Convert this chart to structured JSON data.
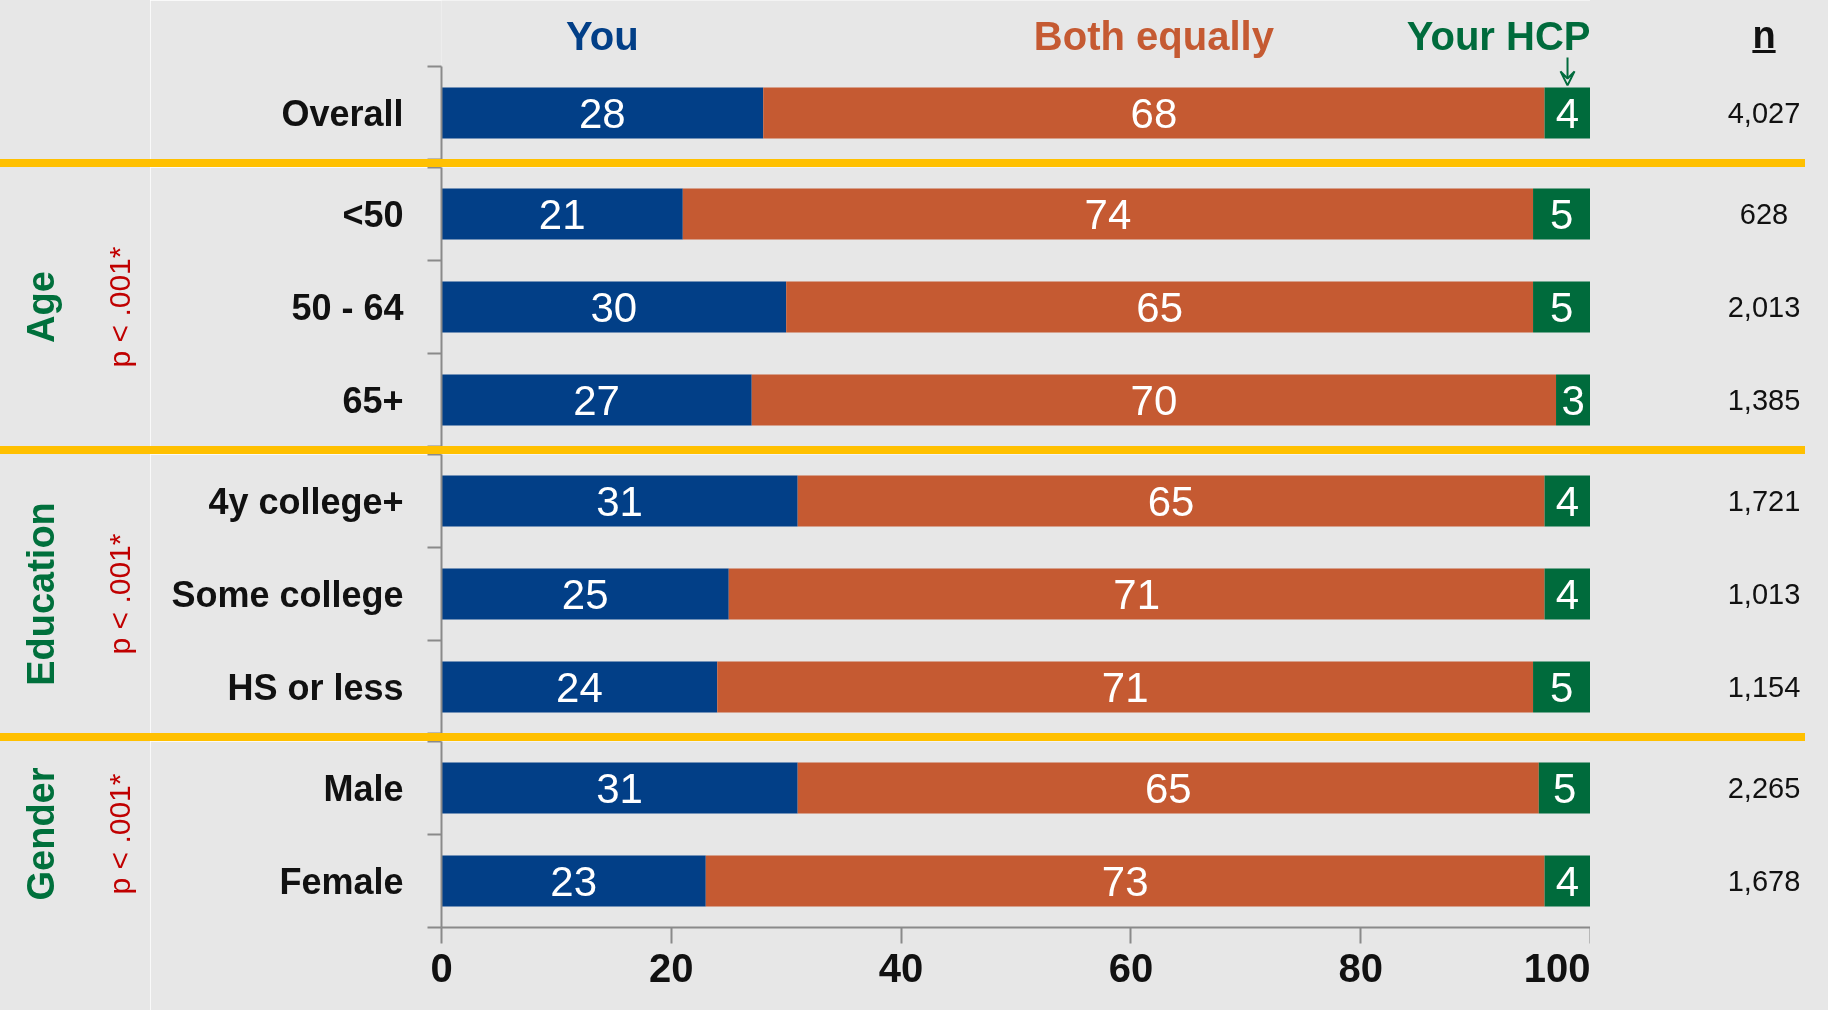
{
  "chart_data": [
    {
      "type": "bar",
      "orientation": "horizontal",
      "stacked": true,
      "categories": [
        "Overall"
      ],
      "series": [
        {
          "name": "You",
          "color": "#023f87",
          "values": [
            28
          ]
        },
        {
          "name": "Both equally",
          "color": "#c55a32",
          "values": [
            68
          ]
        },
        {
          "name": "Your HCP",
          "color": "#006b3c",
          "values": [
            4
          ]
        }
      ],
      "y2_categories": [
        "4,027"
      ],
      "y2label": "n",
      "xlim": [
        0,
        100
      ],
      "tick_labels": "y",
      "data_labels": true,
      "legend": "top"
    },
    {
      "type": "bar",
      "orientation": "horizontal",
      "stacked": true,
      "ylabel": "Age",
      "annotations": [
        "p < .001*"
      ],
      "categories": [
        "<50",
        "50 - 64",
        "65+"
      ],
      "series": [
        {
          "color": "#023f87",
          "values": [
            21,
            30,
            27
          ]
        },
        {
          "color": "#c55a32",
          "values": [
            74,
            65,
            70
          ]
        },
        {
          "color": "#006b3c",
          "values": [
            5,
            5,
            3
          ]
        }
      ],
      "y2_categories": [
        "628",
        "2,013",
        "1,385"
      ],
      "xlim": [
        0,
        100
      ],
      "tick_labels": "y",
      "data_labels": true
    },
    {
      "type": "bar",
      "orientation": "horizontal",
      "stacked": true,
      "ylabel": "Education",
      "annotations": [
        "p < .001*"
      ],
      "categories": [
        "4y college+",
        "Some college",
        "HS or less"
      ],
      "series": [
        {
          "color": "#023f87",
          "values": [
            31,
            25,
            24
          ]
        },
        {
          "color": "#c55a32",
          "values": [
            65,
            71,
            71
          ]
        },
        {
          "color": "#006b3c",
          "values": [
            4,
            4,
            5
          ]
        }
      ],
      "y2_categories": [
        "1,721",
        "1,013",
        "1,154"
      ],
      "xlim": [
        0,
        100
      ],
      "tick_labels": "y",
      "data_labels": true
    },
    {
      "type": "bar",
      "orientation": "horizontal",
      "stacked": true,
      "ylabel": "Gender",
      "annotations": [
        "p < .001*"
      ],
      "categories": [
        "Male",
        "Female"
      ],
      "series": [
        {
          "color": "#023f87",
          "values": [
            31,
            23
          ],
          "value_labels": [
            "31",
            "23"
          ]
        },
        {
          "color": "#c55a32",
          "values": [
            64.5,
            73
          ],
          "value_labels": [
            "65",
            "73"
          ]
        },
        {
          "color": "#006b3c",
          "values": [
            4.5,
            4
          ],
          "value_labels": [
            "5",
            "4"
          ]
        }
      ],
      "y2_categories": [
        "2,265",
        "1,678"
      ],
      "xlim": [
        0,
        100
      ],
      "xticks": [
        0,
        20,
        40,
        60,
        80,
        100
      ]
    }
  ]
}
